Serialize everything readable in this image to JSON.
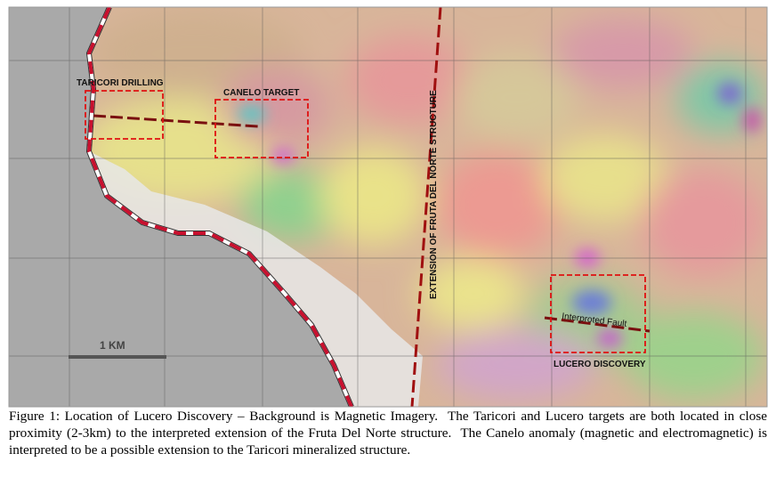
{
  "map": {
    "labels": {
      "taricori": "TARICORI DRILLING",
      "canelo": "CANELO TARGET",
      "fruta": "EXTENSION OF FRUTA DEL NORTE STRUCTURE",
      "fault": "Interproted Fault",
      "lucero": "LUCERO DISCOVERY",
      "scale": "1 KM"
    }
  },
  "caption": "Figure 1: Location of Lucero Discovery – Background is Magnetic Imagery.  The Taricori and Lucero targets are both located in close proximity (2-3km) to the interpreted extension of the Fruta Del Norte structure.  The Canelo anomaly (magnetic and electromagnetic) is interpreted to be a possible extension to the Taricori mineralized structure."
}
